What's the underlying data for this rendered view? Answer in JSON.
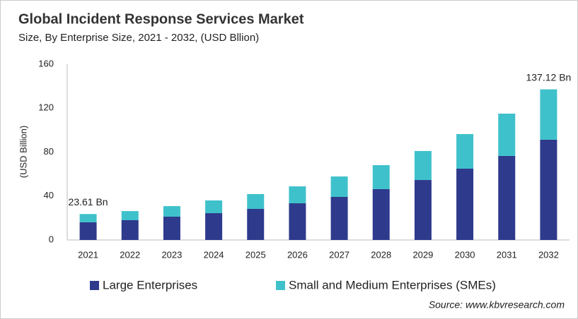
{
  "chart_data": {
    "type": "stacked-bar",
    "title": "Global Incident Response Services Market",
    "subtitle": "Size, By Enterprise Size, 2021 - 2032, (USD Bllion)",
    "y_label": "(USD Billion)",
    "categories": [
      "2021",
      "2022",
      "2023",
      "2024",
      "2025",
      "2026",
      "2027",
      "2028",
      "2029",
      "2030",
      "2031",
      "2032"
    ],
    "series": [
      {
        "name": "Large Enterprises",
        "color": "#2e3a8c",
        "values": [
          16.1,
          18.0,
          21.2,
          24.4,
          28.3,
          33.4,
          39.2,
          46.3,
          54.6,
          64.9,
          76.5,
          91.3
        ]
      },
      {
        "name": "Small and Medium Enterprises (SMEs)",
        "color": "#3fc1cb",
        "values": [
          7.51,
          8.3,
          9.6,
          11.6,
          13.5,
          15.4,
          18.6,
          21.8,
          26.4,
          31.5,
          38.5,
          45.82
        ]
      }
    ],
    "annotations": [
      {
        "x": "2021",
        "y": 23.61,
        "text": "23.61 Bn"
      },
      {
        "x": "2032",
        "y": 137.12,
        "text": "137.12 Bn"
      }
    ],
    "ylim": [
      0,
      160
    ],
    "yticks": [
      0,
      40,
      80,
      120,
      160
    ],
    "grid": false,
    "legend": "bottom",
    "source": "Source: www.kbvresearch.com"
  }
}
